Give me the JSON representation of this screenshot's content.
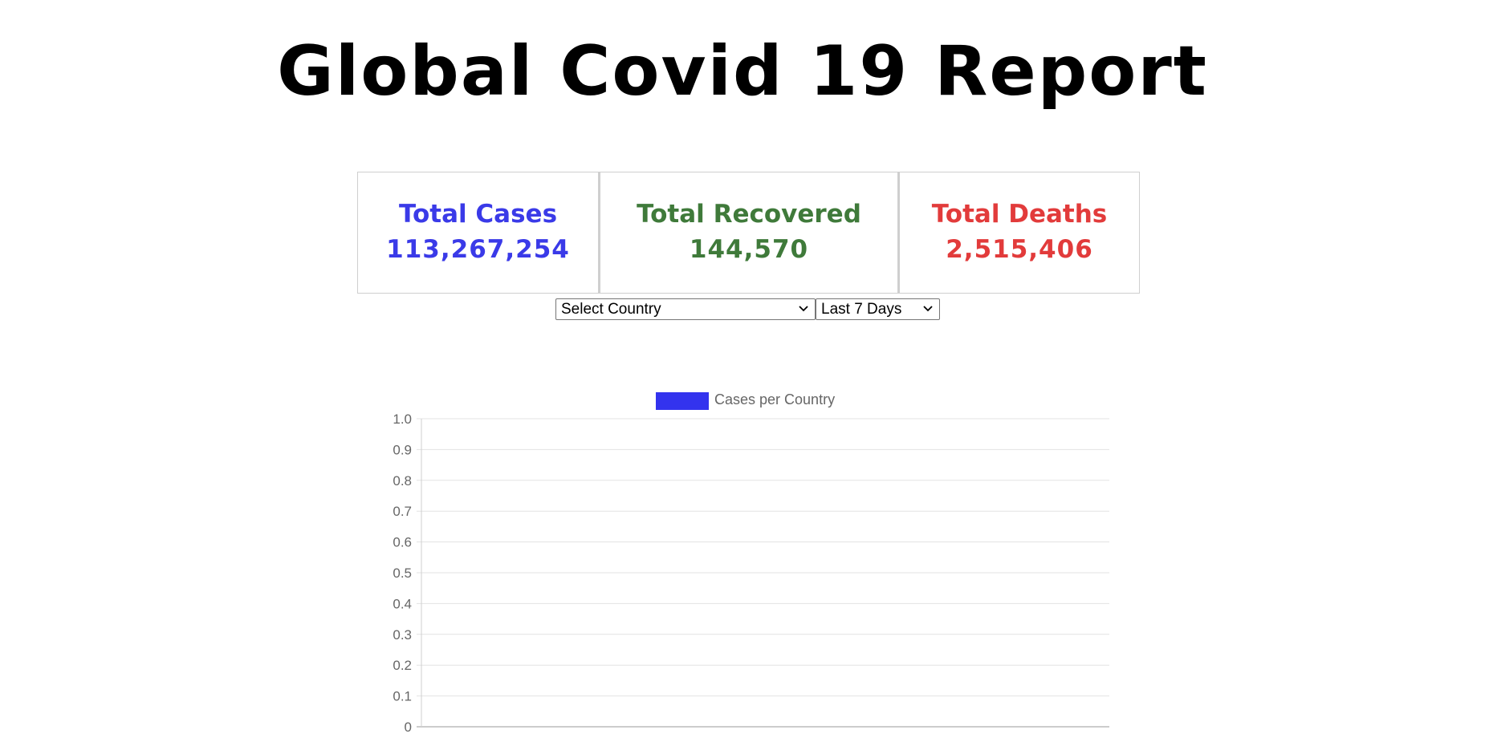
{
  "header": {
    "title": "Global Covid 19 Report"
  },
  "stats": [
    {
      "label": "Total Cases",
      "value": "113,267,254",
      "color": "#3a3ae8"
    },
    {
      "label": "Total Recovered",
      "value": "144,570",
      "color": "#3f7a3a"
    },
    {
      "label": "Total Deaths",
      "value": "2,515,406",
      "color": "#e23b3b"
    }
  ],
  "controls": {
    "country_select": {
      "selected": "Select Country",
      "icon": "chevron-down-icon"
    },
    "period_select": {
      "selected": "Last 7 Days",
      "icon": "chevron-down-icon"
    }
  },
  "chart_data": {
    "type": "bar",
    "categories": [],
    "series": [
      {
        "name": "Cases per Country",
        "values": [],
        "color": "#3333ee"
      }
    ],
    "title": "",
    "xlabel": "",
    "ylabel": "",
    "ylim": [
      0,
      1
    ],
    "yticks": [
      "1.0",
      "0.9",
      "0.8",
      "0.7",
      "0.6",
      "0.5",
      "0.4",
      "0.3",
      "0.2",
      "0.1",
      "0"
    ],
    "grid": true,
    "legend": "top-center"
  }
}
